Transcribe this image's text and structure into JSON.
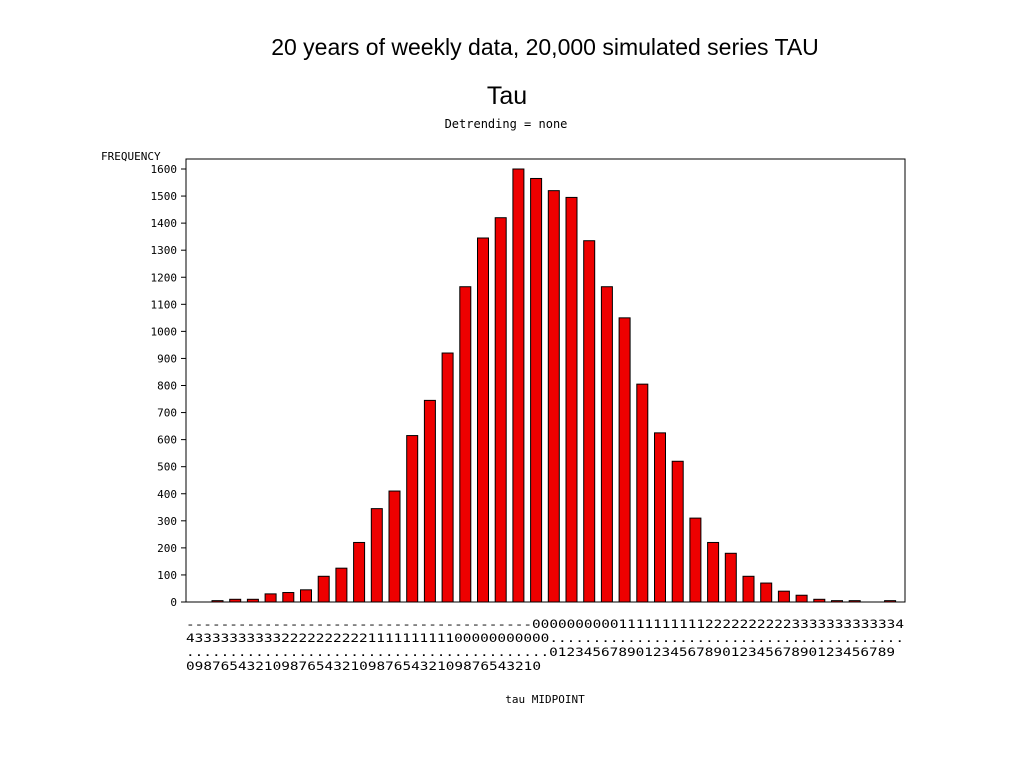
{
  "slide_title": "20 years of weekly data, 20,000 simulated series TAU",
  "chart_data": {
    "type": "bar",
    "title": "Tau",
    "subtitle": "Detrending = none",
    "xlabel": "tau MIDPOINT",
    "ylabel": "FREQUENCY",
    "ylim": [
      0,
      1650
    ],
    "yticks": [
      0,
      100,
      200,
      300,
      400,
      500,
      600,
      700,
      800,
      900,
      1000,
      1100,
      1200,
      1300,
      1400,
      1500,
      1600
    ],
    "grid": false,
    "bar_color": "#ee0000",
    "categories": [
      "-4.0",
      "-3.9",
      "-3.8",
      "-3.7",
      "-3.6",
      "-3.5",
      "-3.4",
      "-3.3",
      "-3.2",
      "-3.1",
      "-3.0",
      "-2.9",
      "-2.8",
      "-2.7",
      "-2.6",
      "-2.5",
      "-2.4",
      "-2.3",
      "-2.2",
      "-2.1",
      "-2.0",
      "-1.9",
      "-1.8",
      "-1.7",
      "-1.6",
      "-1.5",
      "-1.4",
      "-1.3",
      "-1.2",
      "-1.1",
      "-1.0",
      "-0.9",
      "-0.8",
      "-0.7",
      "-0.6",
      "-0.5",
      "-0.4",
      "-0.3",
      "-0.2",
      "-0.1",
      "0.0",
      "0.1",
      "0.2",
      "0.3",
      "0.4",
      "0.5",
      "0.6",
      "0.7",
      "0.8",
      "0.9",
      "1.0",
      "1.1",
      "1.2",
      "1.3",
      "1.4",
      "1.5",
      "1.6",
      "1.7",
      "1.8",
      "1.9",
      "2.0",
      "2.1",
      "2.2",
      "2.3",
      "2.4",
      "2.5",
      "2.6",
      "2.7",
      "2.8",
      "2.9",
      "3.0",
      "3.1",
      "3.2",
      "3.3",
      "3.4",
      "3.5",
      "3.6",
      "3.7",
      "3.8",
      "3.9",
      "4.0"
    ],
    "tick_rows": [
      "----------------------------------------0000000000111111111122222222223333333333334",
      "433333333332222222222111111111100000000000.........................................",
      "..........................................0123456789012345678901234567890123456789",
      "09876543210987654321098765432109876543210"
    ],
    "bars": [
      {
        "x": -3.4,
        "value": 5
      },
      {
        "x": -3.3,
        "value": 10
      },
      {
        "x": -3.2,
        "value": 10
      },
      {
        "x": -3.1,
        "value": 30
      },
      {
        "x": -3.0,
        "value": 35
      },
      {
        "x": -2.9,
        "value": 45
      },
      {
        "x": -2.8,
        "value": 95
      },
      {
        "x": -2.7,
        "value": 125
      },
      {
        "x": -2.6,
        "value": 220
      },
      {
        "x": -2.5,
        "value": 345
      },
      {
        "x": -2.4,
        "value": 410
      },
      {
        "x": -2.3,
        "value": 615
      },
      {
        "x": -2.2,
        "value": 745
      },
      {
        "x": -2.1,
        "value": 920
      },
      {
        "x": -2.0,
        "value": 1165
      },
      {
        "x": -1.9,
        "value": 1345
      },
      {
        "x": -1.8,
        "value": 1420
      },
      {
        "x": -1.7,
        "value": 1600
      },
      {
        "x": -1.6,
        "value": 1565
      },
      {
        "x": -1.5,
        "value": 1520
      },
      {
        "x": -1.4,
        "value": 1495
      },
      {
        "x": -1.3,
        "value": 1335
      },
      {
        "x": -1.2,
        "value": 1165
      },
      {
        "x": -1.1,
        "value": 1050
      },
      {
        "x": -1.0,
        "value": 805
      },
      {
        "x": -0.9,
        "value": 625
      },
      {
        "x": -0.8,
        "value": 520
      },
      {
        "x": -0.7,
        "value": 310
      },
      {
        "x": -0.6,
        "value": 220
      },
      {
        "x": -0.5,
        "value": 180
      },
      {
        "x": -0.4,
        "value": 95
      },
      {
        "x": -0.3,
        "value": 70
      },
      {
        "x": -0.2,
        "value": 40
      },
      {
        "x": -0.1,
        "value": 25
      },
      {
        "x": 0.0,
        "value": 10
      },
      {
        "x": 0.1,
        "value": 5
      },
      {
        "x": 0.2,
        "value": 5
      },
      {
        "x": 0.4,
        "value": 5
      }
    ]
  }
}
